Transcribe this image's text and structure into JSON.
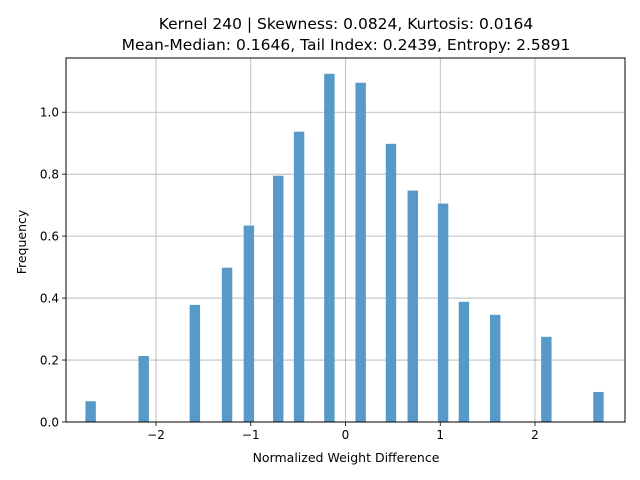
{
  "chart_data": {
    "type": "bar",
    "title_lines": [
      "Kernel 240 | Skewness: 0.0824, Kurtosis: 0.0164",
      "Mean-Median: 0.1646, Tail Index: 0.2439, Entropy: 2.5891"
    ],
    "xlabel": "Normalized Weight Difference",
    "ylabel": "Frequency",
    "xlim": [
      -2.95,
      2.95
    ],
    "ylim": [
      0,
      1.175
    ],
    "grid": true,
    "bar_color": "#5799c7",
    "grid_color": "#b0b0b0",
    "xticks": [
      -2,
      -1,
      0,
      1,
      2
    ],
    "xtick_labels": [
      "−2",
      "−1",
      "0",
      "1",
      "2"
    ],
    "yticks": [
      0.0,
      0.2,
      0.4,
      0.6,
      0.8,
      1.0
    ],
    "ytick_labels": [
      "0.0",
      "0.2",
      "0.4",
      "0.6",
      "0.8",
      "1.0"
    ],
    "bar_width": 0.11,
    "x": [
      -2.69,
      -2.13,
      -1.59,
      -1.25,
      -1.02,
      -0.71,
      -0.49,
      -0.17,
      0.16,
      0.48,
      0.71,
      1.03,
      1.25,
      1.58,
      2.12,
      2.67
    ],
    "values": [
      0.067,
      0.213,
      0.378,
      0.498,
      0.634,
      0.795,
      0.937,
      1.124,
      1.095,
      0.898,
      0.747,
      0.705,
      0.388,
      0.346,
      0.275,
      0.097
    ]
  }
}
